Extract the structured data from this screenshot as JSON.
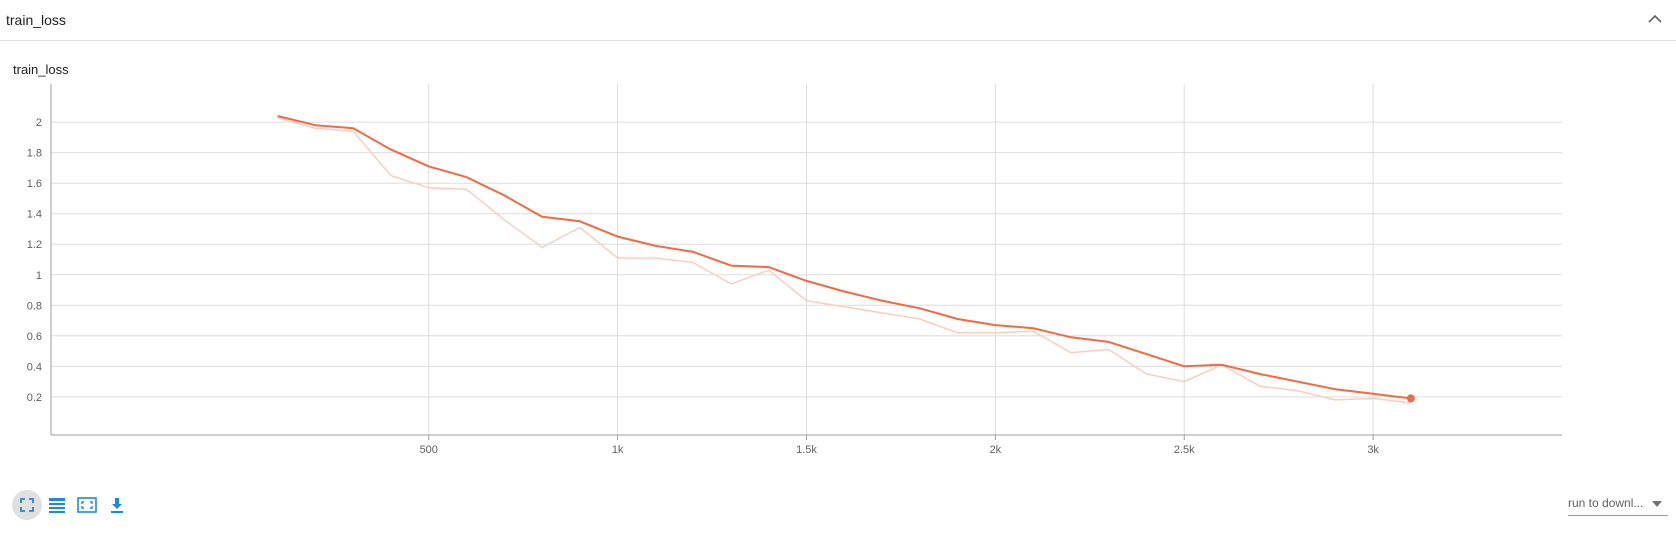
{
  "header": {
    "title": "train_loss"
  },
  "card": {
    "title": "train_loss"
  },
  "toolbar": {
    "buttons": [
      {
        "name": "fit-domain-icon",
        "active": true
      },
      {
        "name": "toggle-log-scale-icon",
        "active": false
      },
      {
        "name": "reset-zoom-icon",
        "active": false
      },
      {
        "name": "download-icon",
        "active": false
      }
    ],
    "accent": "#1e88e5"
  },
  "run_select": {
    "label": "run to downl..."
  },
  "colors": {
    "smoothed": "#f4693f",
    "raw": "#fbcdbd",
    "grid": "#dddddd",
    "axis": "#9e9e9e"
  },
  "chart_data": {
    "type": "line",
    "title": "train_loss",
    "xlabel": "",
    "ylabel": "",
    "xlim": [
      -500,
      3500
    ],
    "ylim": [
      -0.05,
      2.25
    ],
    "x_ticks": [
      500,
      1000,
      1500,
      2000,
      2500,
      3000
    ],
    "x_tick_labels": [
      "500",
      "1k",
      "1.5k",
      "2k",
      "2.5k",
      "3k"
    ],
    "y_ticks": [
      0.2,
      0.4,
      0.6,
      0.8,
      1,
      1.2,
      1.4,
      1.6,
      1.8,
      2
    ],
    "y_tick_labels": [
      "0.2",
      "0.4",
      "0.6",
      "0.8",
      "1",
      "1.2",
      "1.4",
      "1.6",
      "1.8",
      "2"
    ],
    "grid": true,
    "x": [
      100,
      200,
      300,
      400,
      500,
      600,
      700,
      800,
      900,
      1000,
      1100,
      1200,
      1300,
      1400,
      1500,
      1600,
      1700,
      1800,
      1900,
      2000,
      2100,
      2200,
      2300,
      2400,
      2500,
      2600,
      2700,
      2800,
      2900,
      3000,
      3100
    ],
    "series": [
      {
        "role": "raw",
        "values": [
          2.03,
          1.96,
          1.94,
          1.65,
          1.57,
          1.56,
          1.36,
          1.18,
          1.31,
          1.11,
          1.11,
          1.08,
          0.94,
          1.03,
          0.83,
          0.79,
          0.75,
          0.71,
          0.62,
          0.62,
          0.63,
          0.49,
          0.51,
          0.35,
          0.3,
          0.41,
          0.27,
          0.24,
          0.18,
          0.19,
          0.16
        ]
      },
      {
        "role": "smoothed",
        "values": [
          2.04,
          1.98,
          1.96,
          1.82,
          1.71,
          1.64,
          1.52,
          1.38,
          1.35,
          1.25,
          1.19,
          1.15,
          1.06,
          1.05,
          0.96,
          0.89,
          0.83,
          0.78,
          0.71,
          0.67,
          0.65,
          0.59,
          0.56,
          0.48,
          0.4,
          0.41,
          0.35,
          0.3,
          0.25,
          0.22,
          0.19
        ]
      }
    ]
  }
}
